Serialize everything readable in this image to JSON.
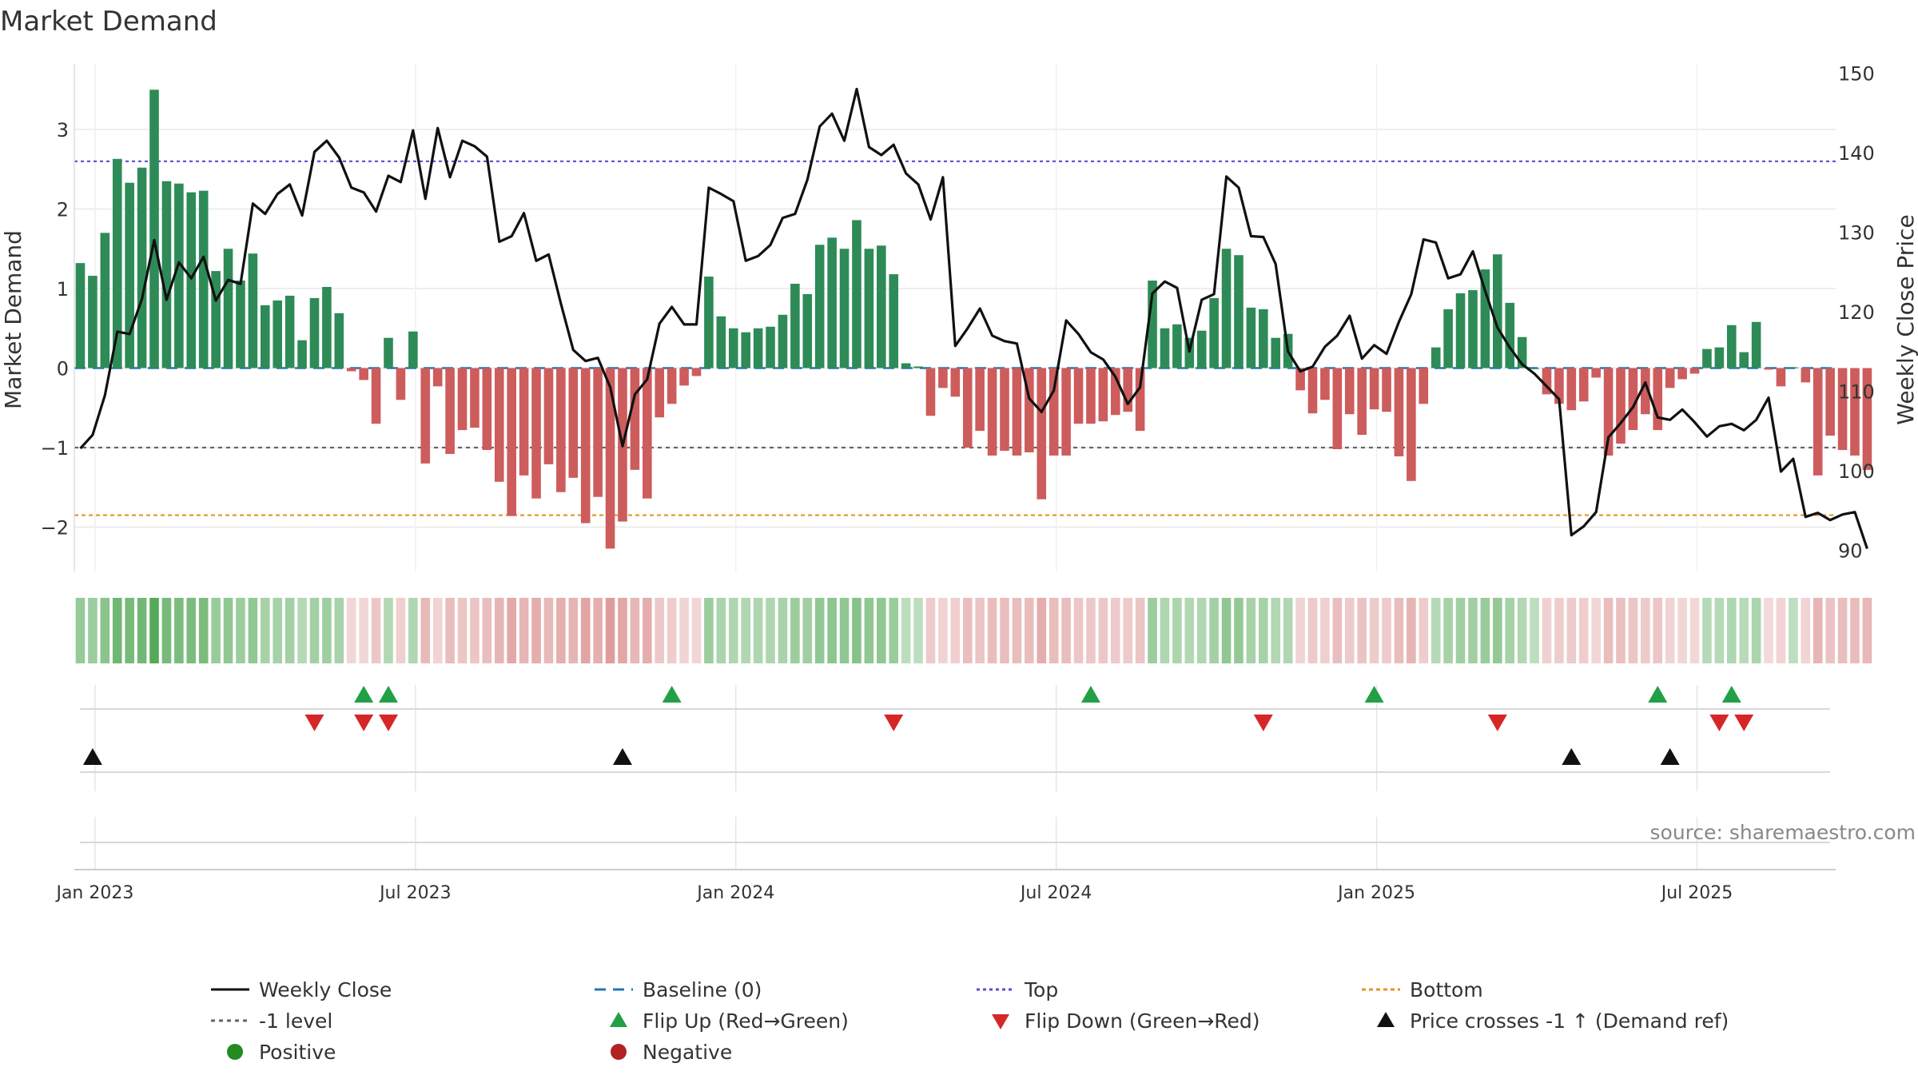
{
  "chart_data": {
    "type": "bar+line",
    "title": "Market Demand",
    "ylabel_left": "Market Demand",
    "ylabel_right": "Weekly Close Price",
    "ylim_left": [
      -2.6,
      3.8
    ],
    "ylim_right": [
      88,
      151
    ],
    "y_ticks_left": [
      3,
      2,
      1,
      0,
      -1,
      -2
    ],
    "y_tick_labels_left": [
      "3",
      "2",
      "1",
      "0",
      "−1",
      "−2"
    ],
    "y_ticks_right": [
      150,
      140,
      130,
      120,
      110,
      100,
      90
    ],
    "y_tick_labels_right": [
      "150",
      "140",
      "130",
      "120",
      "110",
      "100",
      "90"
    ],
    "x_tick_labels": [
      "Jan 2023",
      "Jul 2023",
      "Jan 2024",
      "Jul 2024",
      "Jan 2025",
      "Jul 2025"
    ],
    "x_tick_weeks": [
      1,
      27,
      53,
      79,
      105,
      131
    ],
    "reference_lines": {
      "top": 2.6,
      "bottom": -1.85,
      "minus_one": -1.0,
      "baseline": 0
    },
    "demand": [
      1.32,
      1.16,
      1.7,
      2.63,
      2.33,
      2.52,
      3.5,
      2.35,
      2.32,
      2.21,
      2.23,
      1.22,
      1.5,
      1.1,
      1.44,
      0.79,
      0.85,
      0.91,
      0.35,
      0.88,
      1.02,
      0.69,
      -0.04,
      -0.15,
      -0.7,
      0.38,
      -0.4,
      0.46,
      -1.2,
      -0.23,
      -1.08,
      -0.78,
      -0.75,
      -1.03,
      -1.43,
      -1.86,
      -1.35,
      -1.64,
      -1.21,
      -1.56,
      -1.38,
      -1.95,
      -1.62,
      -2.27,
      -1.93,
      -1.28,
      -1.64,
      -0.62,
      -0.45,
      -0.22,
      -0.1,
      1.15,
      0.65,
      0.5,
      0.45,
      0.5,
      0.52,
      0.67,
      1.06,
      0.93,
      1.55,
      1.64,
      1.5,
      1.86,
      1.5,
      1.54,
      1.18,
      0.06,
      0.02,
      -0.6,
      -0.25,
      -0.36,
      -1.0,
      -0.79,
      -1.1,
      -1.04,
      -1.1,
      -1.06,
      -1.65,
      -1.1,
      -1.1,
      -0.7,
      -0.7,
      -0.67,
      -0.59,
      -0.55,
      -0.79,
      1.1,
      0.5,
      0.55,
      0.38,
      0.47,
      0.88,
      1.5,
      1.42,
      0.76,
      0.74,
      0.38,
      0.43,
      -0.28,
      -0.57,
      -0.4,
      -1.02,
      -0.58,
      -0.84,
      -0.52,
      -0.55,
      -1.11,
      -1.42,
      -0.45,
      0.26,
      0.74,
      0.94,
      0.98,
      1.24,
      1.43,
      0.82,
      0.39,
      0.0,
      -0.33,
      -0.45,
      -0.53,
      -0.42,
      -0.12,
      -1.1,
      -0.95,
      -0.78,
      -0.58,
      -0.78,
      -0.25,
      -0.14,
      -0.07,
      0.24,
      0.26,
      0.54,
      0.2,
      0.58,
      -0.02,
      -0.23,
      0.01,
      -0.18,
      -1.35,
      -0.85,
      -1.03,
      -1.1,
      -1.28
    ],
    "price": [
      102.8,
      104.5,
      109.5,
      117.5,
      117.2,
      121.6,
      129.0,
      121.5,
      126.2,
      124.2,
      126.9,
      121.4,
      124.0,
      123.5,
      133.6,
      132.3,
      134.8,
      136.0,
      132.1,
      140.1,
      141.5,
      139.4,
      135.6,
      135.0,
      132.6,
      137.1,
      136.3,
      142.8,
      134.2,
      143.1,
      136.9,
      141.5,
      140.8,
      139.5,
      128.8,
      129.5,
      132.4,
      126.4,
      127.2,
      121.0,
      115.2,
      113.8,
      114.2,
      110.5,
      103.1,
      109.6,
      111.5,
      118.5,
      120.6,
      118.4,
      118.4,
      135.6,
      134.8,
      133.9,
      126.4,
      127.0,
      128.4,
      131.8,
      132.3,
      136.6,
      143.3,
      144.9,
      141.5,
      148.0,
      140.7,
      139.7,
      141.0,
      137.4,
      136.0,
      131.6,
      136.9,
      115.7,
      117.9,
      120.4,
      117.0,
      116.3,
      116.0,
      109.1,
      107.4,
      110.1,
      118.9,
      117.2,
      114.9,
      114.0,
      111.8,
      108.4,
      110.5,
      122.3,
      123.8,
      123.0,
      115.0,
      121.5,
      122.2,
      137.0,
      135.6,
      129.5,
      129.4,
      126.0,
      115.0,
      112.5,
      113.1,
      115.6,
      117.0,
      119.5,
      114.1,
      115.8,
      114.7,
      118.7,
      122.2,
      129.1,
      128.7,
      124.2,
      124.7,
      127.6,
      122.6,
      118.0,
      115.5,
      113.4,
      112.2,
      110.6,
      109.0,
      91.9,
      93.0,
      94.8,
      104.2,
      106.0,
      108.0,
      111.1,
      106.7,
      106.4,
      107.7,
      106.1,
      104.3,
      105.6,
      105.9,
      105.1,
      106.4,
      109.2,
      99.9,
      101.5,
      94.2,
      94.7,
      93.8,
      94.5,
      94.8,
      90.2
    ],
    "flip_up_weeks": [
      23,
      25,
      48,
      82,
      105,
      128,
      134
    ],
    "flip_down_weeks": [
      19,
      23,
      25,
      66,
      96,
      115,
      133,
      135
    ],
    "cross_up_weeks": [
      1,
      44,
      121,
      129
    ],
    "source": "source: sharemaestro.com",
    "legend": [
      "Weekly Close",
      "Baseline (0)",
      "Top",
      "Bottom",
      "-1 level",
      "Flip Up (Red→Green)",
      "Flip Down (Green→Red)",
      "Price crosses -1 ↑ (Demand ref)",
      "Positive",
      "Negative"
    ],
    "colors": {
      "pos_bar": "#2e8b57",
      "neg_bar": "#cd5c5c",
      "price_line": "#111111",
      "baseline": "#1f77b4",
      "top": "#5a4fcf",
      "bottom": "#e69420",
      "minus_one": "#666666",
      "flip_up": "#22a046",
      "flip_down": "#d62728",
      "cross": "#111111",
      "pos_dot": "#228b22",
      "neg_dot": "#b22222",
      "grid": "#e8e8e8",
      "axis_text": "#333333"
    }
  }
}
